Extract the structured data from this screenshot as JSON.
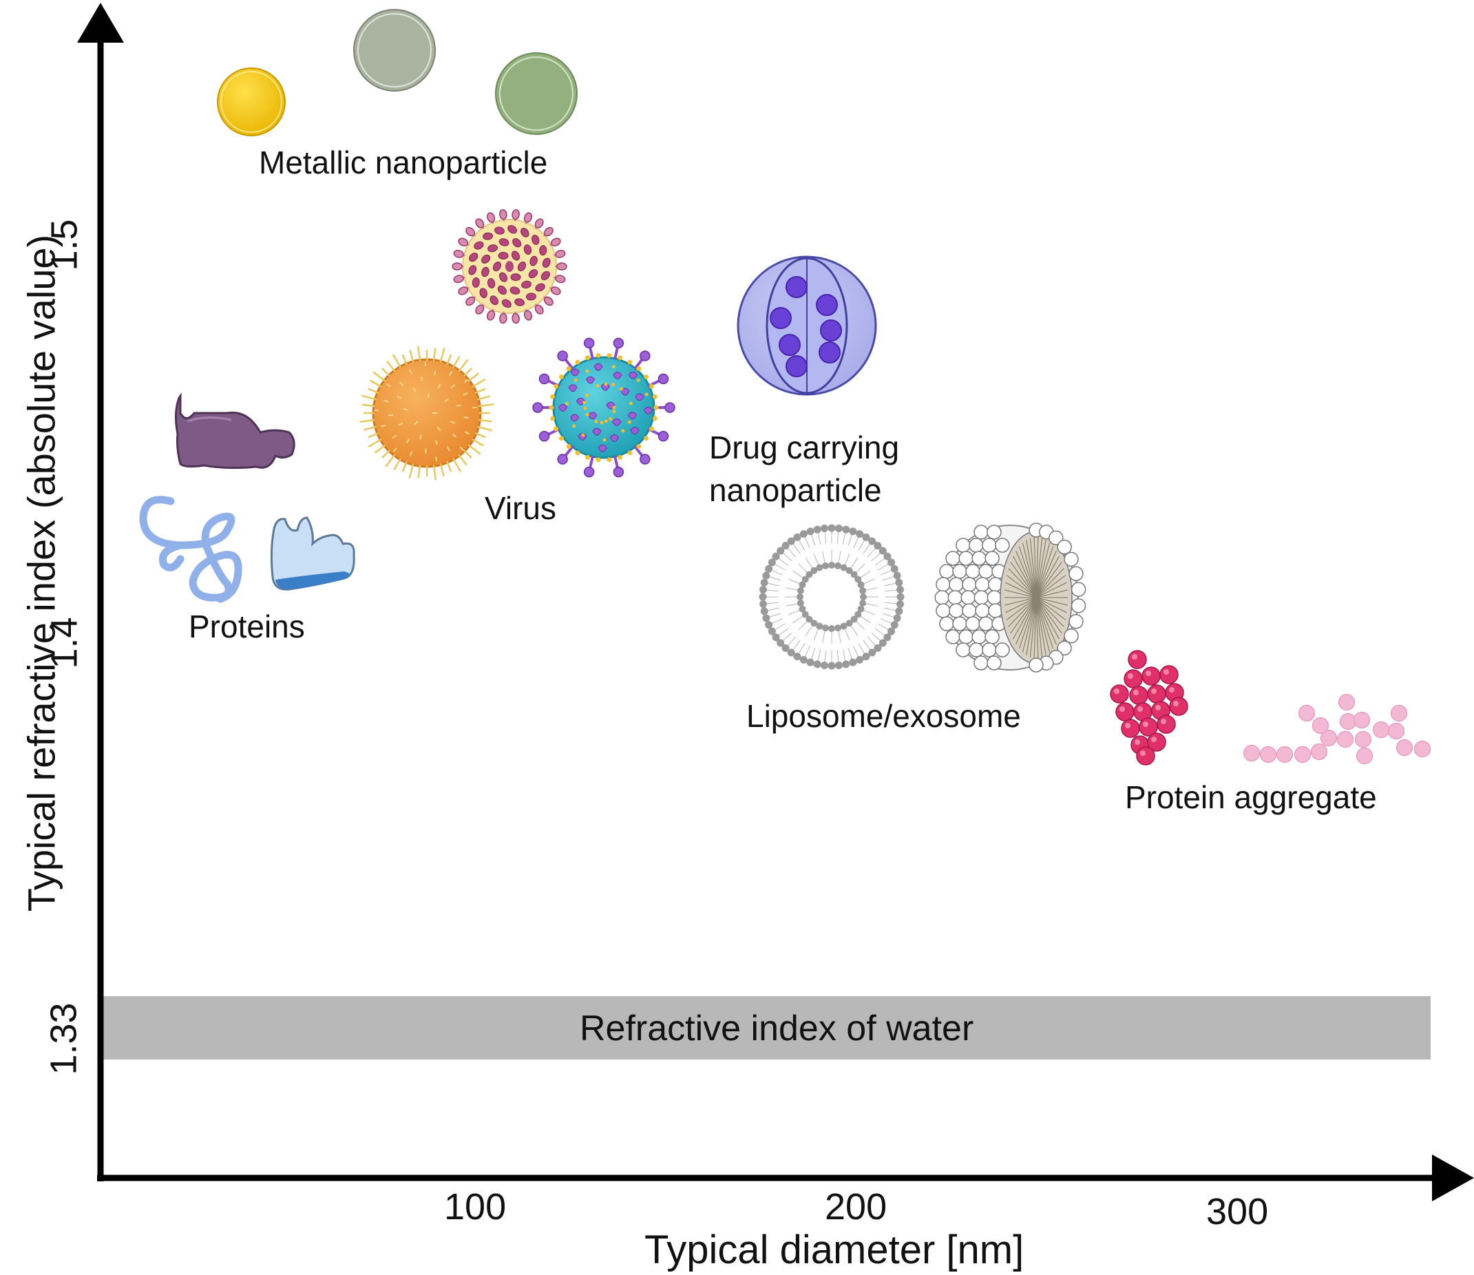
{
  "axes": {
    "x_title": "Typical diameter [nm]",
    "y_title": "Typical refractive index (absolute value)",
    "x_ticks": [
      "100",
      "200",
      "300"
    ],
    "y_ticks": [
      "1.5",
      "1.4",
      "1.33"
    ]
  },
  "water_band": {
    "label": "Refractive index of water",
    "color": "#b8b8b8"
  },
  "groups": {
    "metallic": "Metallic nanoparticle",
    "virus": "Virus",
    "drug_line1": "Drug carrying",
    "drug_line2": "nanoparticle",
    "proteins": "Proteins",
    "liposome": "Liposome/exosome",
    "aggregate": "Protein aggregate"
  },
  "colors": {
    "gold": "#f6c800",
    "grey_particle": "#a9b3a0",
    "green_particle": "#93b07e",
    "virus_orange": "#f29a3e",
    "virus_teal": "#2bb8c8",
    "virus_spike": "#8a4fc6",
    "virus_cream": "#f8e6a8",
    "virus_pink": "#b5457a",
    "drug_outer": "#b5b9ee",
    "drug_inner": "#6a41d6",
    "protein_purple": "#7e5a86",
    "protein_blue": "#8fb0e8",
    "aggregate_dark": "#e0306a",
    "aggregate_light": "#f3b8d4"
  },
  "icons": [
    "gold-nanoparticle-icon",
    "grey-nanoparticle-icon",
    "green-nanoparticle-icon",
    "spiky-virus-icon",
    "orange-virus-icon",
    "corona-virus-icon",
    "drug-carrier-icon",
    "protein-blob-icon",
    "protein-coil-icon",
    "protein-pocket-icon",
    "liposome-icon",
    "exosome-icon",
    "dense-aggregate-icon",
    "chain-aggregate-icon"
  ]
}
